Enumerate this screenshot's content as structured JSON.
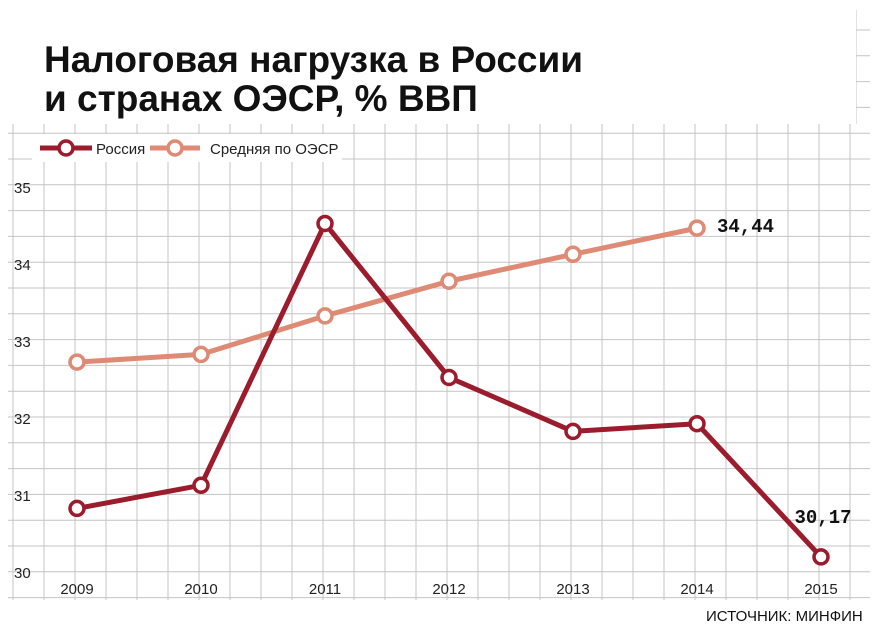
{
  "chart_data": {
    "type": "line",
    "title_lines": [
      "Налоговая нагрузка в России",
      "и странах ОЭСР, % ВВП"
    ],
    "x": [
      "2009",
      "2010",
      "2011",
      "2012",
      "2013",
      "2014",
      "2015"
    ],
    "y_ticks": [
      "35",
      "34",
      "33",
      "32",
      "31",
      "30"
    ],
    "ylim": [
      30,
      35
    ],
    "grid": true,
    "legend_position": "top-left",
    "series": [
      {
        "name": "Россия",
        "color": "#9b1c2c",
        "values": [
          30.8,
          31.1,
          34.5,
          32.5,
          31.8,
          31.9,
          30.17
        ]
      },
      {
        "name": "Средняя по ОЭСР",
        "color": "#de8a74",
        "values": [
          32.7,
          32.8,
          33.3,
          33.75,
          34.1,
          34.44,
          null
        ]
      }
    ],
    "annotations": [
      {
        "series": 1,
        "index": 5,
        "text": "34,44"
      },
      {
        "series": 0,
        "index": 6,
        "text": "30,17"
      }
    ],
    "source": "ИСТОЧНИК: МИНФИН"
  }
}
